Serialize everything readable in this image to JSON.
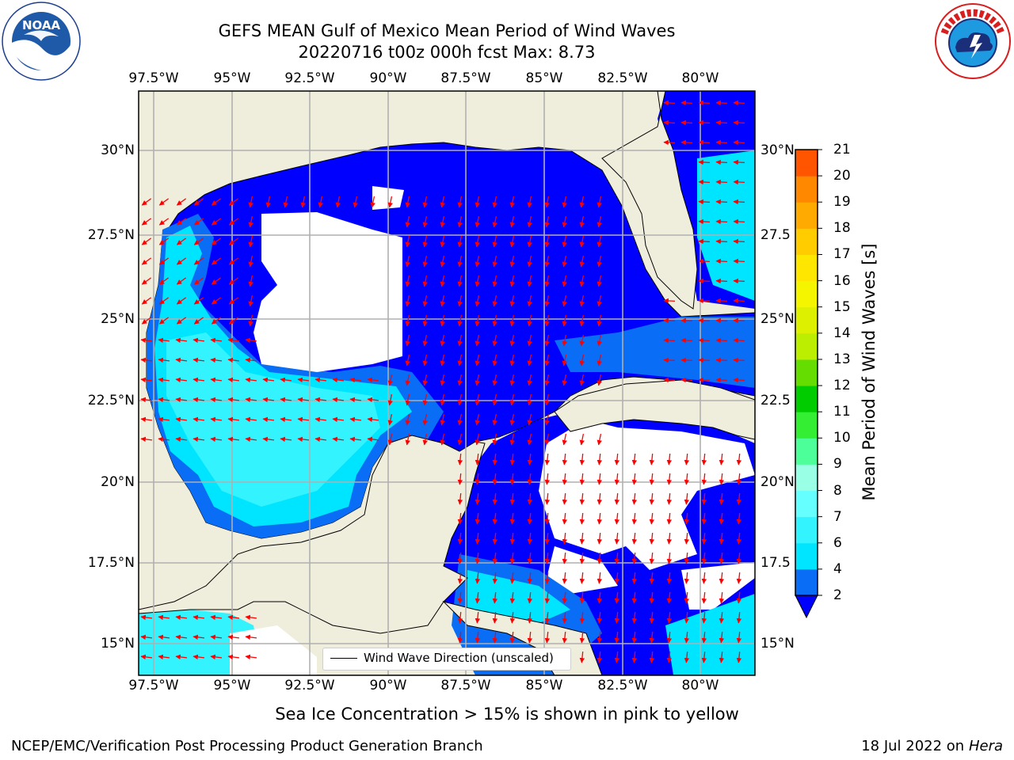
{
  "header": {
    "title_line1": "GEFS MEAN Gulf of Mexico Mean Period of Wind Waves",
    "title_line2": "20220716 t00z 000h fcst   Max: 8.73"
  },
  "logos": {
    "left": {
      "name": "noaa-logo",
      "text": "NOAA",
      "ring_text": "NATIONAL OCEANIC AND ATMOSPHERIC ADMINISTRATION · U.S. DEPARTMENT OF COMMERCE"
    },
    "right": {
      "name": "nws-logo",
      "ring_text": "NATIONAL WEATHER SERVICE"
    }
  },
  "map": {
    "lon_ticks": [
      "97.5°W",
      "95°W",
      "92.5°W",
      "90°W",
      "87.5°W",
      "85°W",
      "82.5°W",
      "80°W"
    ],
    "lat_ticks_left": [
      "30°N",
      "27.5°N",
      "25°N",
      "22.5°N",
      "20°N",
      "17.5°N",
      "15°N"
    ],
    "lat_ticks_right": [
      "30°N",
      "27.5",
      "25°N",
      "22.5",
      "20°N",
      "17.5",
      "15°N"
    ],
    "land_color": "#efeddc",
    "legend_label": "Wind Wave Direction (unscaled)",
    "arrow_color": "#ff0000"
  },
  "colorbar": {
    "label": "Mean Period of Wind Waves [s]",
    "ticks": [
      "2",
      "4",
      "6",
      "7",
      "8",
      "9",
      "10",
      "11",
      "12",
      "13",
      "14",
      "15",
      "16",
      "17",
      "18",
      "19",
      "20",
      "21"
    ],
    "colors": [
      "#0a6df5",
      "#00e5ff",
      "#33f3ff",
      "#66ffff",
      "#99ffe5",
      "#4dff99",
      "#33ee33",
      "#00cc00",
      "#66dd00",
      "#bbee00",
      "#ddf000",
      "#f5f500",
      "#ffe600",
      "#ffcc00",
      "#ffaa00",
      "#ff8800",
      "#ff5500",
      "#ff2200",
      "#ff0000"
    ],
    "under_color": "#0000ff"
  },
  "footer": {
    "sea_ice_note": "Sea Ice Concentration > 15% is shown in pink to yellow",
    "left": "NCEP/EMC/Verification Post Processing Product Generation Branch",
    "date": "18 Jul 2022 on",
    "host": "Hera"
  }
}
